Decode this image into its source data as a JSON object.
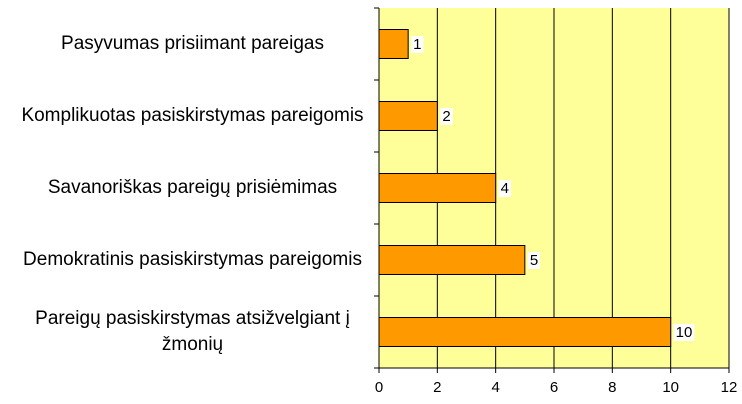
{
  "chart_data": {
    "type": "barh",
    "categories": [
      "Pasyvumas prisiimant pareigas",
      "Komplikuotas pasiskirstymas pareigomis",
      "Savanoriškas pareigų prisiėmimas",
      "Demokratinis pasiskirstymas pareigomis",
      "Pareigų pasiskirstymas atsižvelgiant į žmonių"
    ],
    "values": [
      1,
      2,
      4,
      5,
      10
    ],
    "color": "#ff9900",
    "plot_background": "#ffff99",
    "xlim": [
      0,
      12
    ],
    "xticks": [
      0,
      2,
      4,
      6,
      8,
      10,
      12
    ],
    "grid": true
  }
}
